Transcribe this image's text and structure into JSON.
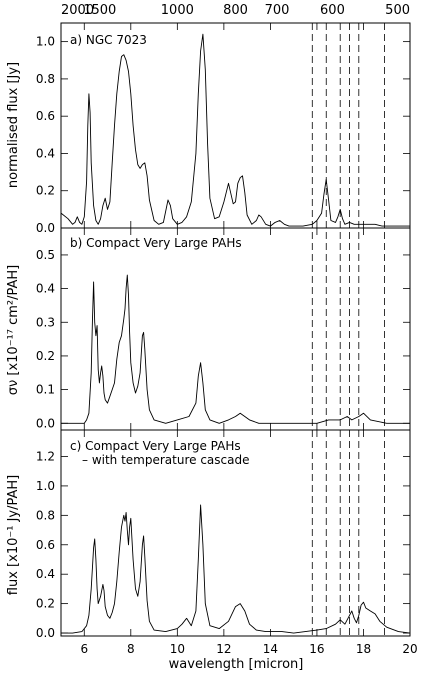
{
  "chart_data": {
    "type": "line",
    "figure": {
      "xlabel": "wavelength [micron]",
      "xlim": [
        5,
        20
      ],
      "xticks": [
        6,
        8,
        10,
        12,
        14,
        16,
        18,
        20
      ],
      "top_axis_label_values": [
        "2000",
        "1500",
        "1000",
        "800",
        "700",
        "600",
        "500"
      ],
      "top_axis_wavelengths": [
        5.0,
        6.667,
        10.0,
        12.5,
        14.286,
        16.667,
        20.0
      ],
      "dashed_lines_x": [
        15.8,
        16.4,
        17.0,
        17.4,
        17.8,
        18.9
      ]
    },
    "panels": [
      {
        "id": "a",
        "label": "a) NGC 7023",
        "label_line2": "",
        "ylabel": "normalised flux [Jy]",
        "ylim": [
          0,
          1.1
        ],
        "yticks": [
          "0.0",
          "0.2",
          "0.4",
          "0.6",
          "0.8",
          "1.0"
        ],
        "series": [
          {
            "x": [
              5.0,
              5.3,
              5.5,
              5.6,
              5.7,
              5.8,
              5.9,
              6.0,
              6.1,
              6.15,
              6.2,
              6.25,
              6.3,
              6.4,
              6.5,
              6.6,
              6.7,
              6.8,
              6.9,
              7.0,
              7.1,
              7.2,
              7.3,
              7.4,
              7.5,
              7.6,
              7.7,
              7.8,
              7.9,
              8.0,
              8.1,
              8.2,
              8.3,
              8.4,
              8.5,
              8.6,
              8.7,
              8.8,
              9.0,
              9.2,
              9.4,
              9.6,
              9.7,
              9.8,
              10.0,
              10.2,
              10.4,
              10.6,
              10.8,
              10.9,
              11.0,
              11.1,
              11.2,
              11.3,
              11.4,
              11.6,
              11.8,
              12.0,
              12.2,
              12.4,
              12.5,
              12.6,
              12.7,
              12.8,
              12.9,
              13.0,
              13.2,
              13.4,
              13.5,
              13.6,
              13.8,
              14.0,
              14.2,
              14.4,
              14.6,
              14.8,
              15.0,
              15.4,
              15.8,
              16.0,
              16.2,
              16.3,
              16.4,
              16.5,
              16.6,
              16.8,
              16.9,
              17.0,
              17.1,
              17.2,
              17.4,
              17.6,
              17.8,
              18.0,
              18.2,
              18.5,
              18.8,
              19.0,
              19.5,
              20.0
            ],
            "y": [
              0.08,
              0.05,
              0.02,
              0.03,
              0.06,
              0.03,
              0.02,
              0.06,
              0.25,
              0.55,
              0.72,
              0.62,
              0.35,
              0.12,
              0.04,
              0.02,
              0.05,
              0.12,
              0.16,
              0.1,
              0.14,
              0.35,
              0.55,
              0.72,
              0.84,
              0.92,
              0.93,
              0.9,
              0.84,
              0.72,
              0.55,
              0.42,
              0.34,
              0.32,
              0.34,
              0.35,
              0.28,
              0.15,
              0.04,
              0.02,
              0.03,
              0.15,
              0.12,
              0.05,
              0.02,
              0.03,
              0.06,
              0.14,
              0.4,
              0.72,
              0.95,
              1.04,
              0.85,
              0.45,
              0.16,
              0.05,
              0.06,
              0.14,
              0.24,
              0.13,
              0.14,
              0.24,
              0.27,
              0.28,
              0.19,
              0.07,
              0.02,
              0.04,
              0.07,
              0.06,
              0.02,
              0.01,
              0.03,
              0.04,
              0.02,
              0.01,
              0.01,
              0.01,
              0.02,
              0.04,
              0.08,
              0.18,
              0.26,
              0.15,
              0.04,
              0.03,
              0.06,
              0.1,
              0.05,
              0.02,
              0.03,
              0.02,
              0.02,
              0.02,
              0.02,
              0.02,
              0.01,
              0.01,
              0.01,
              0.01
            ]
          }
        ]
      },
      {
        "id": "b",
        "label": "b) Compact Very Large PAHs",
        "label_line2": "",
        "ylabel": "σν [x10⁻¹⁷ cm²/PAH]",
        "ylim": [
          -0.02,
          0.58
        ],
        "yticks": [
          "0.0",
          "0.1",
          "0.2",
          "0.3",
          "0.4",
          "0.5"
        ],
        "series": [
          {
            "x": [
              5.0,
              5.5,
              5.8,
              6.0,
              6.1,
              6.2,
              6.3,
              6.35,
              6.4,
              6.45,
              6.5,
              6.55,
              6.6,
              6.65,
              6.7,
              6.75,
              6.8,
              6.85,
              6.9,
              7.0,
              7.1,
              7.2,
              7.3,
              7.4,
              7.5,
              7.6,
              7.7,
              7.75,
              7.8,
              7.85,
              7.9,
              7.95,
              8.0,
              8.1,
              8.2,
              8.3,
              8.4,
              8.5,
              8.55,
              8.6,
              8.7,
              8.8,
              9.0,
              9.5,
              10.0,
              10.5,
              10.8,
              10.9,
              11.0,
              11.1,
              11.2,
              11.4,
              11.8,
              12.2,
              12.5,
              12.7,
              12.9,
              13.1,
              13.5,
              14.0,
              15.0,
              16.0,
              16.5,
              17.0,
              17.3,
              17.5,
              17.8,
              18.0,
              18.3,
              19.0,
              20.0
            ],
            "y": [
              0.0,
              0.0,
              0.0,
              0.0,
              0.01,
              0.03,
              0.15,
              0.3,
              0.42,
              0.3,
              0.26,
              0.29,
              0.16,
              0.12,
              0.15,
              0.17,
              0.14,
              0.09,
              0.07,
              0.06,
              0.08,
              0.1,
              0.12,
              0.19,
              0.24,
              0.26,
              0.31,
              0.34,
              0.4,
              0.44,
              0.38,
              0.27,
              0.18,
              0.12,
              0.09,
              0.11,
              0.15,
              0.26,
              0.27,
              0.22,
              0.1,
              0.04,
              0.01,
              0.0,
              0.01,
              0.02,
              0.06,
              0.14,
              0.18,
              0.12,
              0.04,
              0.01,
              0.0,
              0.01,
              0.02,
              0.03,
              0.02,
              0.01,
              0.0,
              0.0,
              0.0,
              0.0,
              0.01,
              0.01,
              0.02,
              0.01,
              0.02,
              0.03,
              0.01,
              0.0,
              0.0
            ]
          }
        ]
      },
      {
        "id": "c",
        "label": "c) Compact Very Large PAHs",
        "label_line2": "– with temperature cascade",
        "ylabel": "flux [x10⁻¹ Jy/PAH]",
        "ylim": [
          -0.02,
          1.38
        ],
        "yticks": [
          "0.0",
          "0.2",
          "0.4",
          "0.6",
          "0.8",
          "1.0",
          "1.2"
        ],
        "series": [
          {
            "x": [
              5.0,
              5.5,
              5.9,
              6.1,
              6.2,
              6.3,
              6.4,
              6.45,
              6.5,
              6.55,
              6.6,
              6.7,
              6.8,
              6.85,
              6.9,
              7.0,
              7.1,
              7.2,
              7.3,
              7.4,
              7.5,
              7.6,
              7.7,
              7.75,
              7.8,
              7.85,
              7.9,
              7.95,
              8.0,
              8.1,
              8.2,
              8.3,
              8.4,
              8.5,
              8.55,
              8.6,
              8.7,
              8.8,
              9.0,
              9.5,
              10.0,
              10.2,
              10.4,
              10.6,
              10.8,
              10.9,
              11.0,
              11.1,
              11.2,
              11.4,
              11.8,
              12.2,
              12.5,
              12.7,
              12.9,
              13.1,
              13.4,
              13.8,
              14.5,
              15.0,
              15.5,
              16.0,
              16.4,
              16.8,
              17.0,
              17.2,
              17.4,
              17.5,
              17.6,
              17.7,
              17.8,
              17.9,
              18.0,
              18.1,
              18.3,
              18.5,
              18.7,
              19.0,
              19.5,
              20.0
            ],
            "y": [
              0.0,
              0.0,
              0.01,
              0.05,
              0.12,
              0.3,
              0.58,
              0.64,
              0.5,
              0.3,
              0.2,
              0.25,
              0.33,
              0.29,
              0.18,
              0.12,
              0.1,
              0.14,
              0.2,
              0.35,
              0.55,
              0.72,
              0.8,
              0.76,
              0.82,
              0.7,
              0.6,
              0.72,
              0.78,
              0.5,
              0.3,
              0.25,
              0.35,
              0.6,
              0.66,
              0.52,
              0.22,
              0.08,
              0.02,
              0.01,
              0.03,
              0.06,
              0.1,
              0.05,
              0.15,
              0.5,
              0.87,
              0.6,
              0.2,
              0.05,
              0.03,
              0.08,
              0.18,
              0.2,
              0.15,
              0.06,
              0.02,
              0.01,
              0.01,
              0.0,
              0.01,
              0.02,
              0.03,
              0.06,
              0.09,
              0.06,
              0.12,
              0.15,
              0.1,
              0.07,
              0.12,
              0.19,
              0.21,
              0.17,
              0.15,
              0.13,
              0.08,
              0.04,
              0.01,
              0.0
            ]
          }
        ]
      }
    ]
  }
}
